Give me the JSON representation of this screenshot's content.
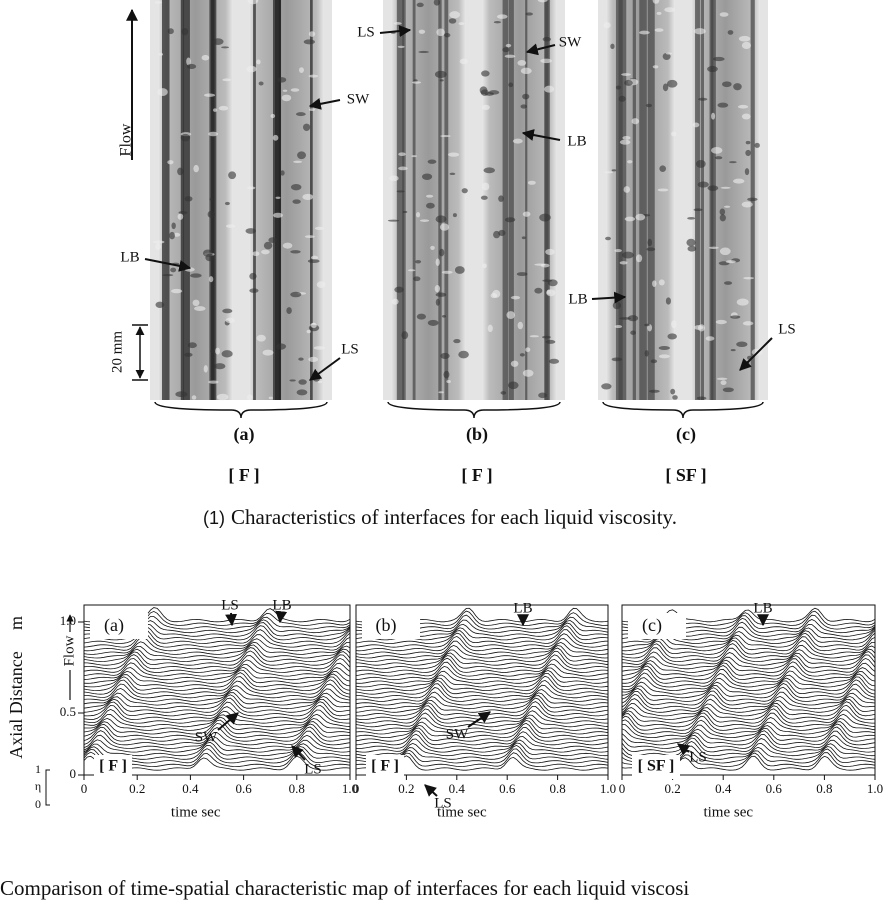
{
  "figure1": {
    "flow_label": "Flow",
    "scale_label": "20 mm",
    "panels": [
      {
        "label": "(a)",
        "fluid": "[ F ]",
        "annotations": [
          "LB",
          "SW",
          "LS"
        ]
      },
      {
        "label": "(b)",
        "fluid": "[ F ]",
        "annotations": [
          "LS",
          "SW",
          "LB"
        ]
      },
      {
        "label": "(c)",
        "fluid": "[ SF ]",
        "annotations": [
          "LB",
          "LS"
        ]
      }
    ],
    "caption_number": "(1)",
    "caption": "Characteristics of interfaces for each liquid viscosity."
  },
  "figure2": {
    "y_axis_label": "Axial Distance",
    "y_axis_unit": "m",
    "flow_label": "Flow",
    "yticks": [
      "1.0",
      "0.5",
      "0"
    ],
    "eta_ticks": [
      "1",
      "η",
      "0"
    ],
    "x_axis_label": "time sec",
    "xticks": [
      "0",
      "0.2",
      "0.4",
      "0.6",
      "0.8",
      "1.0"
    ],
    "panels": [
      {
        "label": "(a)",
        "fluid": "[ F ]",
        "annotations": [
          "LS",
          "LB",
          "SW",
          "LS"
        ]
      },
      {
        "label": "(b)",
        "fluid": "[ F ]",
        "annotations": [
          "LB",
          "SW",
          "LS"
        ]
      },
      {
        "label": "(c)",
        "fluid": "[ SF ]",
        "annotations": [
          "LB",
          "LS"
        ]
      }
    ],
    "caption": "Comparison of time-spatial characteristic map of interfaces for each liquid viscosi"
  }
}
